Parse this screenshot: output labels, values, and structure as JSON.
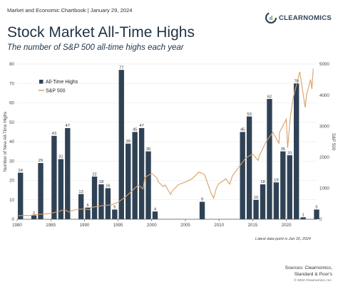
{
  "header": {
    "line": "Market and Economic Chartbook | January 29, 2024"
  },
  "logo": {
    "text": "CLEARNOMICS"
  },
  "chart_data": {
    "type": "bar",
    "title": "Stock Market All-Time Highs",
    "subtitle": "The number of S&P 500 all-time highs each year",
    "ylabel": "Number of New All-Time Highs",
    "y2label": "S&P 500",
    "ylim": [
      0,
      80
    ],
    "y2lim": [
      0,
      5000
    ],
    "yticks": [
      0,
      10,
      20,
      30,
      40,
      50,
      60,
      70,
      80
    ],
    "y2ticks": [
      0,
      1000,
      2000,
      3000,
      4000,
      5000
    ],
    "xticks": [
      1980,
      1985,
      1990,
      1995,
      2000,
      2005,
      2010,
      2015,
      2020
    ],
    "legend": {
      "position": "top-left",
      "bars_label": "All-Time Highs",
      "line_label": "S&P 500"
    },
    "colors": {
      "bars": "#2f4255",
      "line": "#d9a066"
    },
    "bars": [
      {
        "year": 1980,
        "value": 24
      },
      {
        "year": 1981,
        "value": 0
      },
      {
        "year": 1982,
        "value": 2
      },
      {
        "year": 1983,
        "value": 29
      },
      {
        "year": 1984,
        "value": 0
      },
      {
        "year": 1985,
        "value": 43
      },
      {
        "year": 1986,
        "value": 31
      },
      {
        "year": 1987,
        "value": 47
      },
      {
        "year": 1988,
        "value": 0
      },
      {
        "year": 1989,
        "value": 13
      },
      {
        "year": 1990,
        "value": 6
      },
      {
        "year": 1991,
        "value": 22
      },
      {
        "year": 1992,
        "value": 18
      },
      {
        "year": 1993,
        "value": 16
      },
      {
        "year": 1994,
        "value": 5
      },
      {
        "year": 1995,
        "value": 77
      },
      {
        "year": 1996,
        "value": 39
      },
      {
        "year": 1997,
        "value": 45
      },
      {
        "year": 1998,
        "value": 47
      },
      {
        "year": 1999,
        "value": 35
      },
      {
        "year": 2000,
        "value": 4
      },
      {
        "year": 2007,
        "value": 9
      },
      {
        "year": 2013,
        "value": 45
      },
      {
        "year": 2014,
        "value": 53
      },
      {
        "year": 2015,
        "value": 10
      },
      {
        "year": 2016,
        "value": 18
      },
      {
        "year": 2017,
        "value": 62
      },
      {
        "year": 2018,
        "value": 19
      },
      {
        "year": 2019,
        "value": 35
      },
      {
        "year": 2020,
        "value": 33
      },
      {
        "year": 2021,
        "value": 70
      },
      {
        "year": 2022,
        "value": 1
      },
      {
        "year": 2024,
        "value": 5
      }
    ],
    "line": [
      [
        1980,
        110
      ],
      [
        1981,
        125
      ],
      [
        1982,
        120
      ],
      [
        1983,
        160
      ],
      [
        1984,
        165
      ],
      [
        1985,
        190
      ],
      [
        1986,
        240
      ],
      [
        1987,
        310
      ],
      [
        1987.8,
        230
      ],
      [
        1988,
        265
      ],
      [
        1989,
        320
      ],
      [
        1990,
        330
      ],
      [
        1990.8,
        305
      ],
      [
        1991,
        380
      ],
      [
        1992,
        415
      ],
      [
        1993,
        450
      ],
      [
        1994,
        460
      ],
      [
        1995,
        550
      ],
      [
        1996,
        700
      ],
      [
        1997,
        900
      ],
      [
        1998,
        1100
      ],
      [
        1998.7,
        980
      ],
      [
        1999,
        1350
      ],
      [
        2000,
        1480
      ],
      [
        2000.8,
        1320
      ],
      [
        2001,
        1200
      ],
      [
        2001.7,
        1050
      ],
      [
        2002,
        1100
      ],
      [
        2002.8,
        800
      ],
      [
        2003,
        900
      ],
      [
        2004,
        1120
      ],
      [
        2005,
        1200
      ],
      [
        2006,
        1300
      ],
      [
        2007,
        1520
      ],
      [
        2007.8,
        1450
      ],
      [
        2008,
        1350
      ],
      [
        2008.8,
        850
      ],
      [
        2009.2,
        680
      ],
      [
        2009.6,
        1000
      ],
      [
        2010,
        1150
      ],
      [
        2011,
        1300
      ],
      [
        2011.6,
        1130
      ],
      [
        2012,
        1400
      ],
      [
        2013,
        1700
      ],
      [
        2014,
        1980
      ],
      [
        2015,
        2100
      ],
      [
        2015.8,
        1900
      ],
      [
        2016,
        2050
      ],
      [
        2017,
        2500
      ],
      [
        2018,
        2800
      ],
      [
        2018.9,
        2450
      ],
      [
        2019,
        2800
      ],
      [
        2020,
        3230
      ],
      [
        2020.2,
        2300
      ],
      [
        2020.6,
        3300
      ],
      [
        2021,
        3900
      ],
      [
        2022,
        4750
      ],
      [
        2022.8,
        3600
      ],
      [
        2023,
        4000
      ],
      [
        2023.6,
        4500
      ],
      [
        2023.8,
        4200
      ],
      [
        2024,
        4850
      ]
    ]
  },
  "footer": {
    "note": "Latest data point is Jan 26, 2024",
    "sources_line1": "Sources: Clearnomics,",
    "sources_line2": "Standard & Poor's",
    "copyright": "© 2024 Clearnomics, Inc."
  }
}
